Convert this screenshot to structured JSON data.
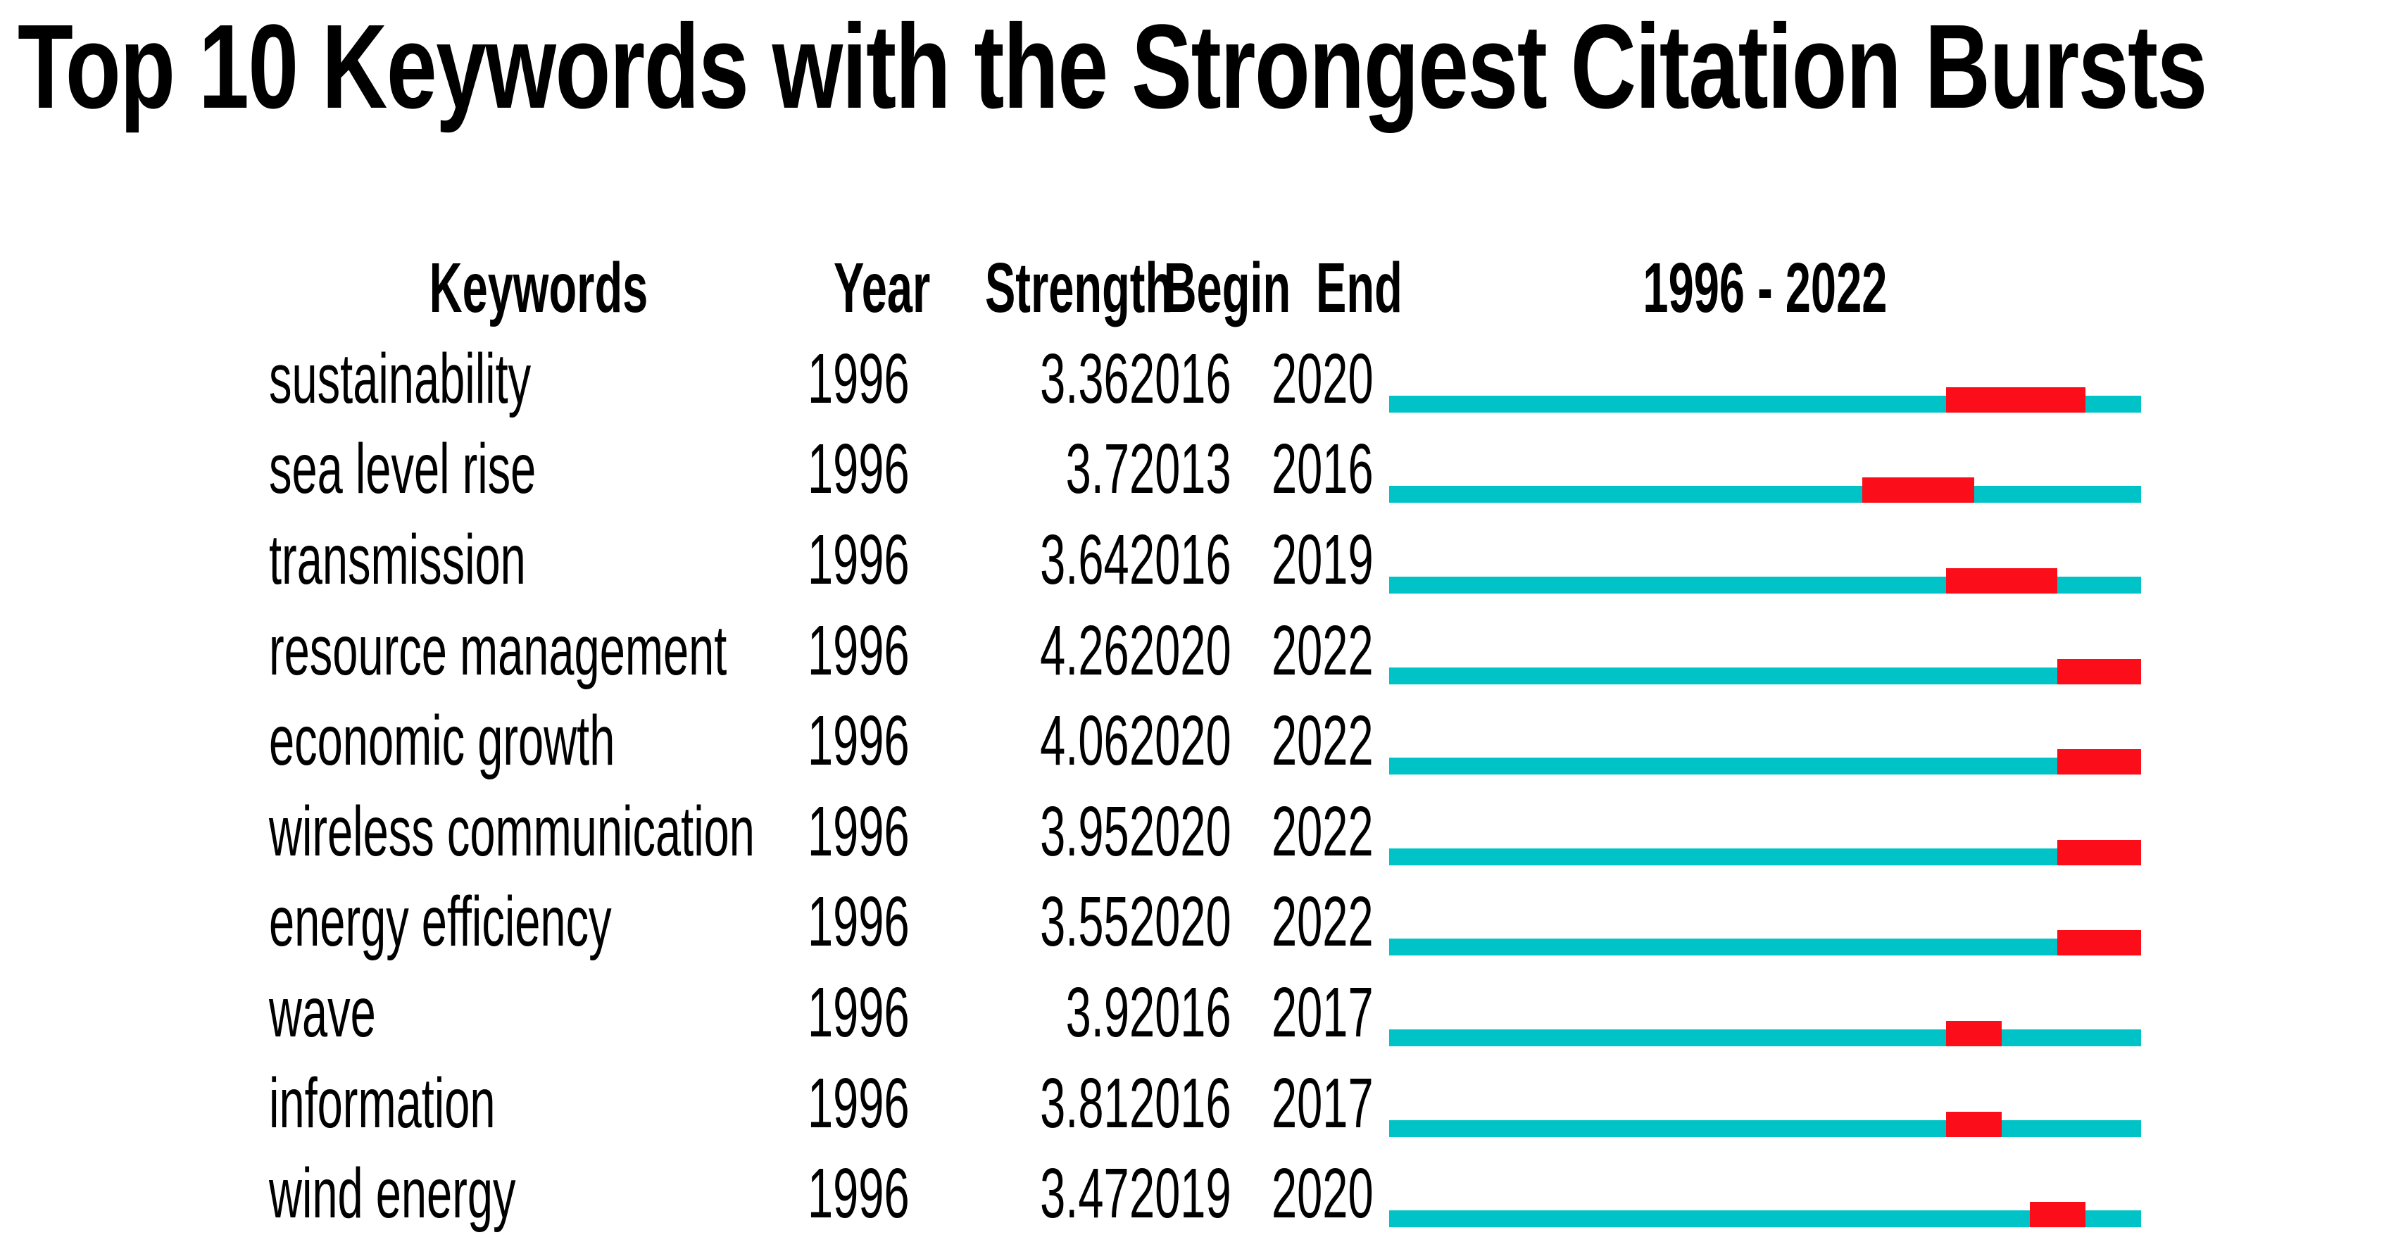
{
  "title": "Top 10 Keywords with the Strongest Citation Bursts",
  "table": {
    "headers": {
      "keywords": "Keywords",
      "year": "Year",
      "strength": "Strength",
      "begin": "Begin",
      "end": "End",
      "range": "1996 - 2022"
    }
  },
  "colors": {
    "track_teal": "#00C3C7",
    "burst_red": "#FB0D1A",
    "text": "#000000",
    "background": "#FFFFFF"
  },
  "chart_data": {
    "type": "table",
    "title": "Top 10 Keywords with the Strongest Citation Bursts",
    "columns": [
      "Keywords",
      "Year",
      "Strength",
      "Begin",
      "End",
      "1996 - 2022"
    ],
    "timeline": {
      "start": 1996,
      "end": 2022
    },
    "legend": {
      "track": "full period 1996-2022 (teal)",
      "burst": "citation burst interval Begin-End (red)"
    },
    "rows": [
      {
        "keyword": "sustainability",
        "year": 1996,
        "strength": 3.36,
        "begin": 2016,
        "end": 2020
      },
      {
        "keyword": "sea level rise",
        "year": 1996,
        "strength": 3.7,
        "begin": 2013,
        "end": 2016
      },
      {
        "keyword": "transmission",
        "year": 1996,
        "strength": 3.64,
        "begin": 2016,
        "end": 2019
      },
      {
        "keyword": "resource management",
        "year": 1996,
        "strength": 4.26,
        "begin": 2020,
        "end": 2022
      },
      {
        "keyword": "economic growth",
        "year": 1996,
        "strength": 4.06,
        "begin": 2020,
        "end": 2022
      },
      {
        "keyword": "wireless communication",
        "year": 1996,
        "strength": 3.95,
        "begin": 2020,
        "end": 2022
      },
      {
        "keyword": "energy efficiency",
        "year": 1996,
        "strength": 3.55,
        "begin": 2020,
        "end": 2022
      },
      {
        "keyword": "wave",
        "year": 1996,
        "strength": 3.9,
        "begin": 2016,
        "end": 2017
      },
      {
        "keyword": "information",
        "year": 1996,
        "strength": 3.81,
        "begin": 2016,
        "end": 2017
      },
      {
        "keyword": "wind energy",
        "year": 1996,
        "strength": 3.47,
        "begin": 2019,
        "end": 2020
      }
    ]
  }
}
